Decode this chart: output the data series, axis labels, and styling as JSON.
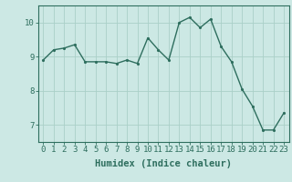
{
  "x": [
    0,
    1,
    2,
    3,
    4,
    5,
    6,
    7,
    8,
    9,
    10,
    11,
    12,
    13,
    14,
    15,
    16,
    17,
    18,
    19,
    20,
    21,
    22,
    23
  ],
  "y": [
    8.9,
    9.2,
    9.25,
    9.35,
    8.85,
    8.85,
    8.85,
    8.8,
    8.9,
    8.8,
    9.55,
    9.2,
    8.9,
    10.0,
    10.15,
    9.85,
    10.1,
    9.3,
    8.85,
    8.05,
    7.55,
    6.85,
    6.85,
    7.35
  ],
  "line_color": "#2e6e5e",
  "marker_color": "#2e6e5e",
  "bg_color": "#cce8e4",
  "grid_color": "#aad0c8",
  "axis_color": "#2e6e5e",
  "xlabel": "Humidex (Indice chaleur)",
  "ylim": [
    6.5,
    10.5
  ],
  "xlim": [
    -0.5,
    23.5
  ],
  "yticks": [
    7,
    8,
    9,
    10
  ],
  "xticks": [
    0,
    1,
    2,
    3,
    4,
    5,
    6,
    7,
    8,
    9,
    10,
    11,
    12,
    13,
    14,
    15,
    16,
    17,
    18,
    19,
    20,
    21,
    22,
    23
  ],
  "xlabel_fontsize": 7.5,
  "tick_fontsize": 6.5,
  "line_width": 1.0,
  "marker_size": 2.5
}
